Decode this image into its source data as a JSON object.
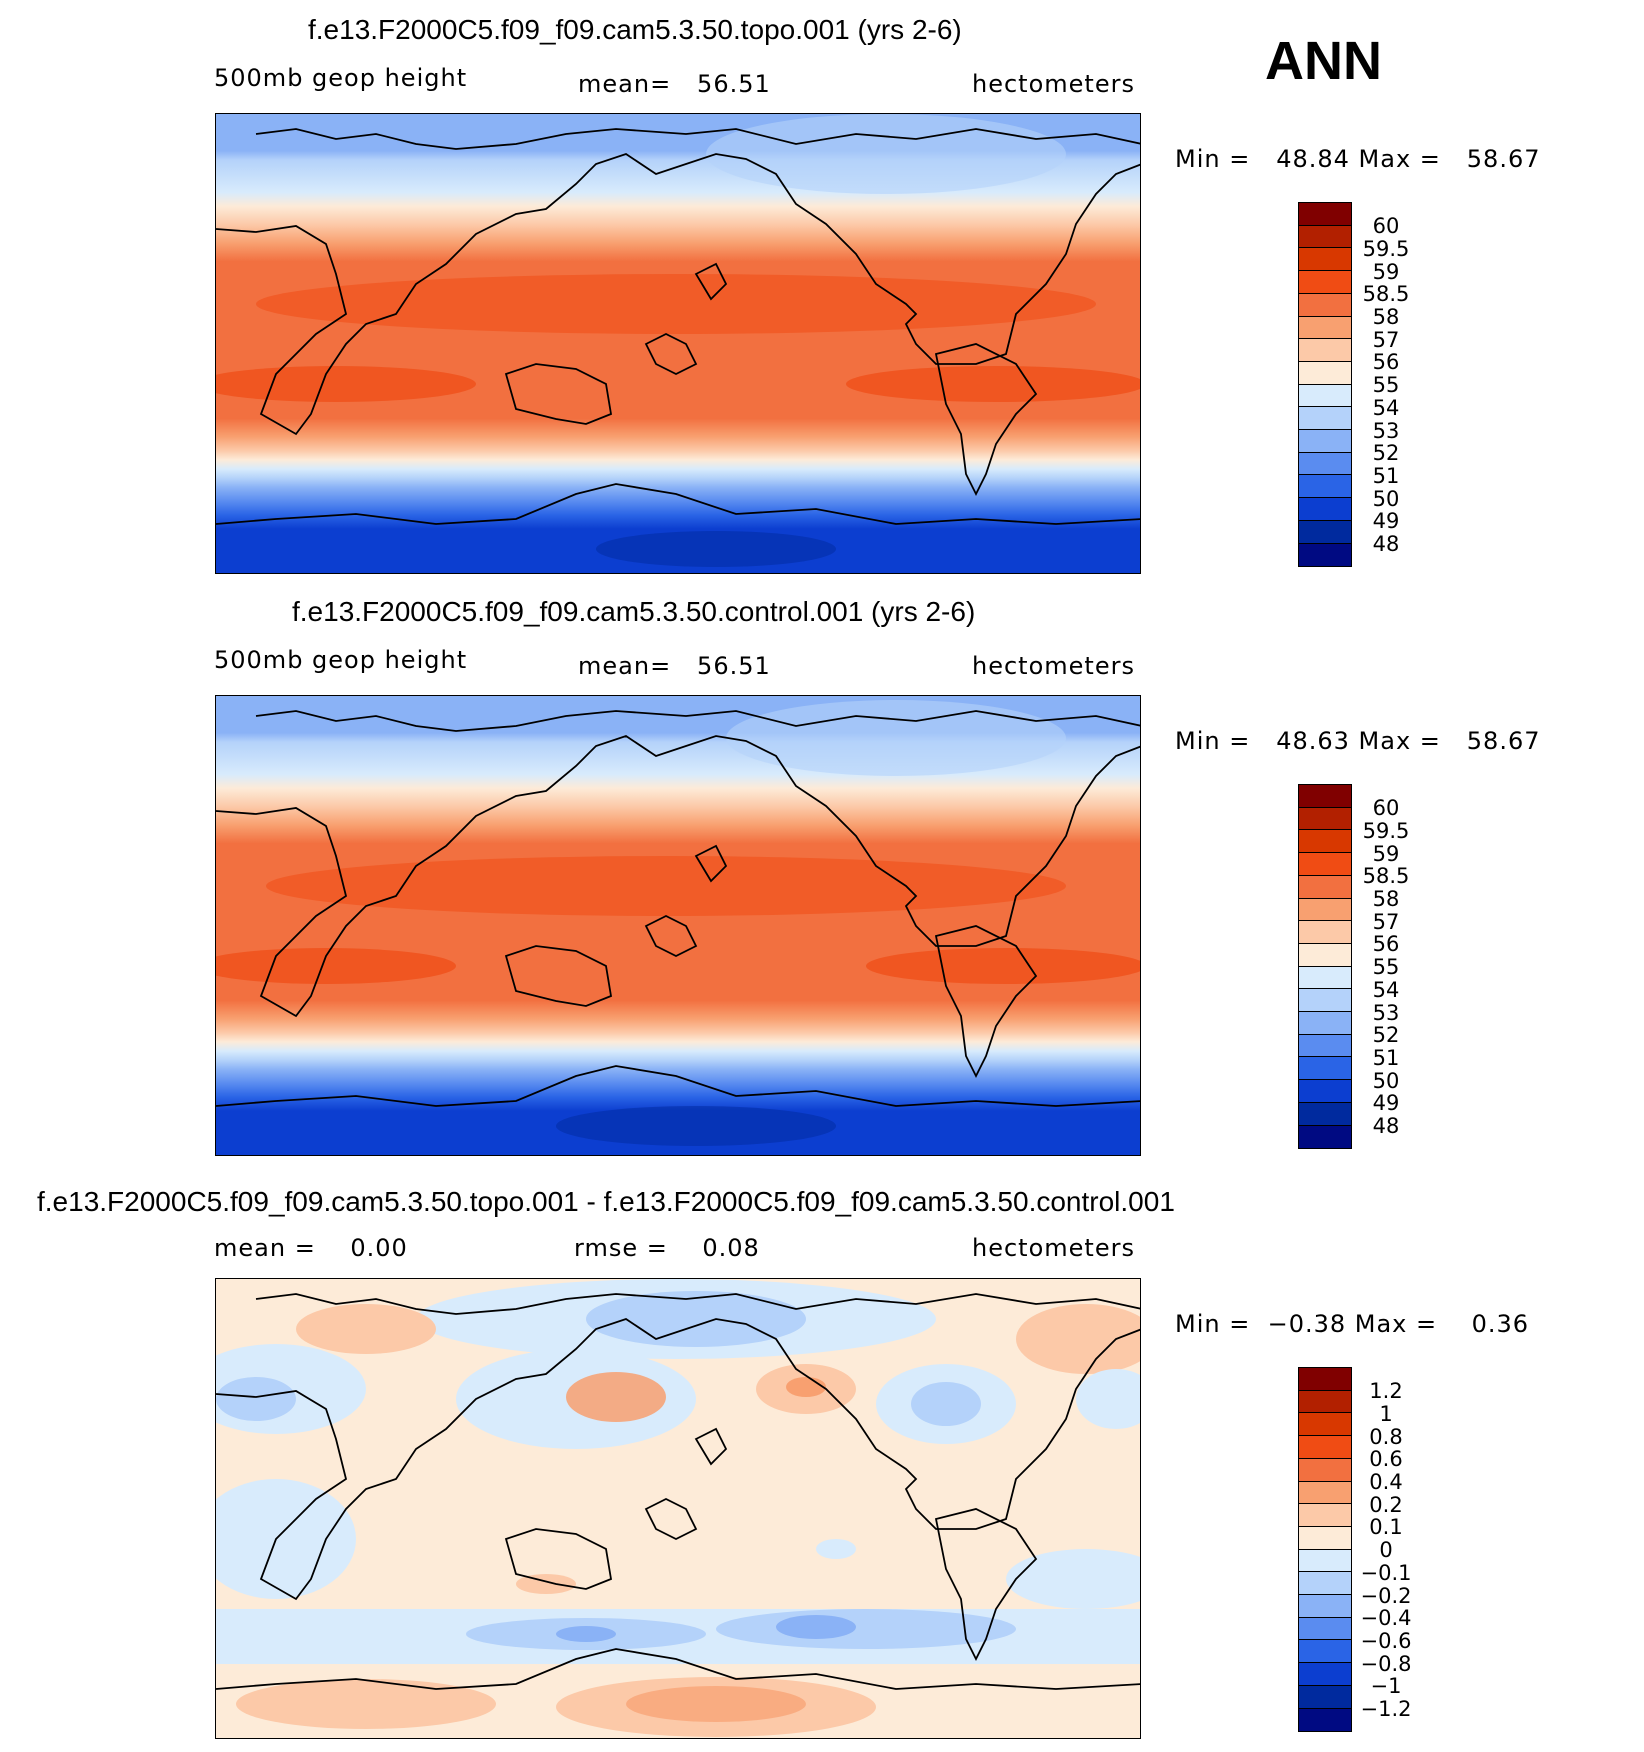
{
  "header": {
    "season": "ANN"
  },
  "panels": [
    {
      "title": "f.e13.F2000C5.f09_f09.cam5.3.50.topo.001 (yrs 2-6)",
      "left_label": "500mb geop height",
      "center_label": "mean=   56.51",
      "right_label": "hectometers",
      "minmax": "Min =   48.84 Max =   58.67",
      "legend_levels": [
        "60",
        "59.5",
        "59",
        "58.5",
        "58",
        "57",
        "56",
        "55",
        "54",
        "53",
        "52",
        "51",
        "50",
        "49",
        "48"
      ]
    },
    {
      "title": "f.e13.F2000C5.f09_f09.cam5.3.50.control.001 (yrs 2-6)",
      "left_label": "500mb geop height",
      "center_label": "mean=   56.51",
      "right_label": "hectometers",
      "minmax": "Min =   48.63 Max =   58.67",
      "legend_levels": [
        "60",
        "59.5",
        "59",
        "58.5",
        "58",
        "57",
        "56",
        "55",
        "54",
        "53",
        "52",
        "51",
        "50",
        "49",
        "48"
      ]
    },
    {
      "title": "f.e13.F2000C5.f09_f09.cam5.3.50.topo.001 - f.e13.F2000C5.f09_f09.cam5.3.50.control.001",
      "left_label": "mean =    0.00",
      "center_label": "rmse =    0.08",
      "right_label": "hectometers",
      "minmax": "Min =  −0.38 Max =    0.36",
      "legend_levels": [
        "1.2",
        "1",
        "0.8",
        "0.6",
        "0.4",
        "0.2",
        "0.1",
        "0",
        "−0.1",
        "−0.2",
        "−0.4",
        "−0.6",
        "−0.8",
        "−1",
        "−1.2"
      ]
    }
  ],
  "colors": {
    "palette": [
      "#800000",
      "#b22000",
      "#d83800",
      "#f04c14",
      "#f27040",
      "#f8a070",
      "#fcc9a8",
      "#fdebd8",
      "#d8ebfc",
      "#b4d2fa",
      "#8ab2f6",
      "#5a8cf0",
      "#2a64e6",
      "#0c3ed0",
      "#002a9e",
      "#000a82"
    ]
  },
  "map_fields": {
    "geopotential_bands": [
      {
        "lat_band": "arctic",
        "color_index": 10
      },
      {
        "lat_band": "n_midlat",
        "color_index": 8
      },
      {
        "lat_band": "subtropics",
        "color_index": 5
      },
      {
        "lat_band": "tropics",
        "color_index": 4
      },
      {
        "lat_band": "s_midlat",
        "color_index": 8
      },
      {
        "lat_band": "southern_ocean",
        "color_index": 12
      },
      {
        "lat_band": "antarctica",
        "color_index": 13
      }
    ]
  }
}
